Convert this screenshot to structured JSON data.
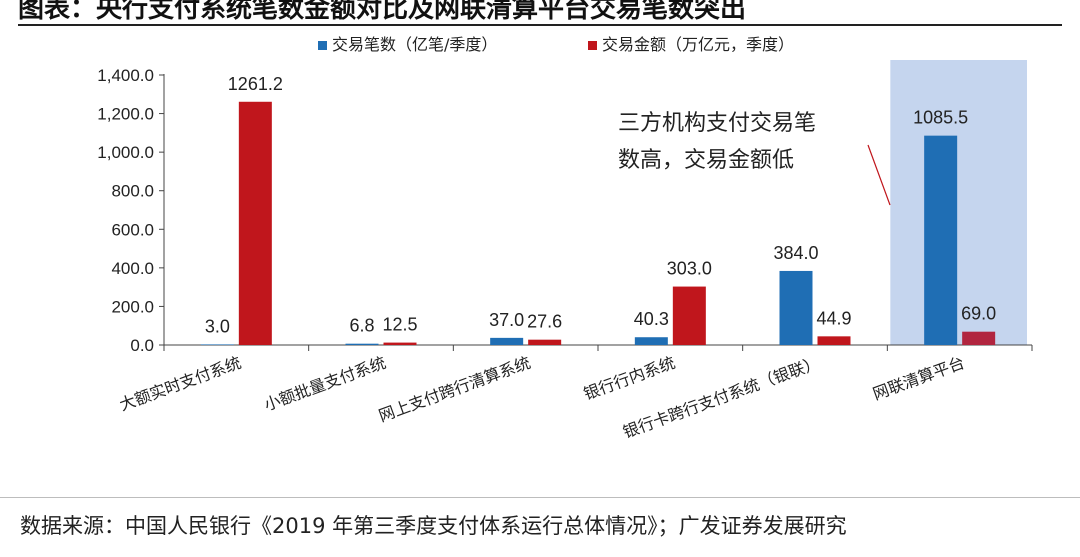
{
  "header": {
    "title": "图表：央行支付系统笔数金额对比及网联清算平台交易笔数突出"
  },
  "chart_data": {
    "type": "bar",
    "categories": [
      "大额实时支付系统",
      "小额批量支付系统",
      "网上支付跨行清算系统",
      "银行行内系统",
      "银行卡跨行支付系统（银联）",
      "网联清算平台"
    ],
    "series": [
      {
        "name": "交易笔数（亿笔/季度）",
        "color": "#1f6eb4",
        "values": [
          3.0,
          6.8,
          37.0,
          40.3,
          384.0,
          1085.5
        ]
      },
      {
        "name": "交易金额（万亿元，季度）",
        "color": "#c0161c",
        "values": [
          1261.2,
          12.5,
          27.6,
          303.0,
          44.9,
          69.0
        ]
      }
    ],
    "value_labels": [
      [
        "3.0",
        "6.8",
        "37.0",
        "40.3",
        "384.0",
        "1085.5"
      ],
      [
        "1261.2",
        "12.5",
        "27.6",
        "303.0",
        "44.9",
        "69.0"
      ]
    ],
    "highlight_category": "网联清算平台",
    "highlight_color": "#c5d5ee",
    "highlight_bar_color": "#b1253f",
    "ylim": [
      0,
      1400
    ],
    "yticks": [
      "0.0",
      "200.0",
      "400.0",
      "600.0",
      "800.0",
      "1,000.0",
      "1,200.0",
      "1,400.0"
    ],
    "legend_position": "top",
    "grid": false,
    "annotation": {
      "lines": [
        "三方机构支付交易笔",
        "数高，交易金额低"
      ]
    }
  },
  "source": {
    "text": "数据来源：中国人民银行《2019 年第三季度支付体系运行总体情况》；广发证券发展研究"
  }
}
